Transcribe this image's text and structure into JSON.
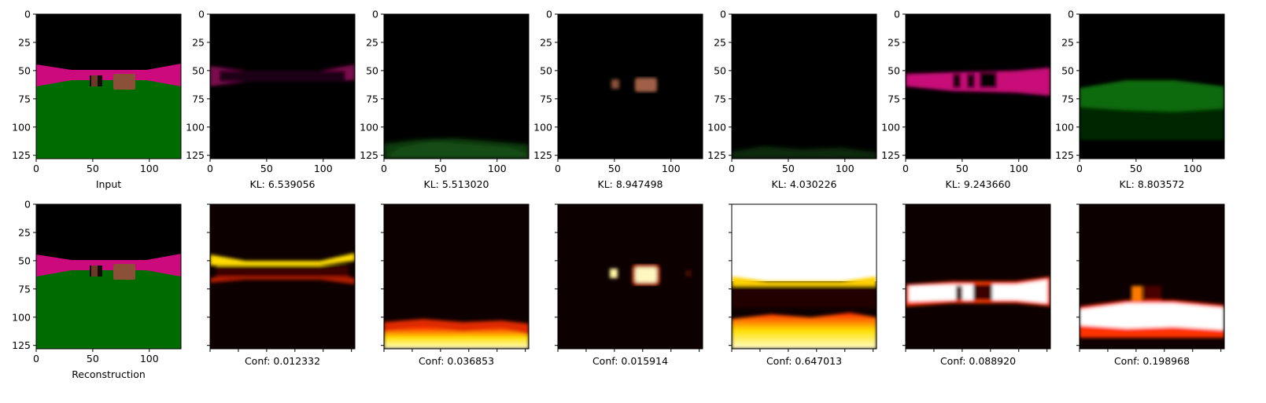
{
  "figure": {
    "image_size": 128,
    "axis_ticks": [
      0,
      25,
      50,
      75,
      100,
      125
    ],
    "x_ticks": [
      0,
      50,
      100
    ],
    "top_row": [
      {
        "label": "Input",
        "content": "scene-full"
      },
      {
        "label": "KL: 6.539056",
        "content": "channel-walls-dark"
      },
      {
        "label": "KL: 5.513020",
        "content": "channel-floor-dim"
      },
      {
        "label": "KL: 8.947498",
        "content": "channel-objects"
      },
      {
        "label": "KL: 4.030226",
        "content": "channel-floor-faint"
      },
      {
        "label": "KL: 9.243660",
        "content": "channel-walls-magenta"
      },
      {
        "label": "KL: 8.803572",
        "content": "channel-floor-green"
      }
    ],
    "bottom_row": [
      {
        "label": "Reconstruction",
        "content": "scene-full"
      },
      {
        "label": "Conf: 0.012332",
        "content": "heatmap-walls-edges"
      },
      {
        "label": "Conf: 0.036853",
        "content": "heatmap-floor"
      },
      {
        "label": "Conf: 0.015914",
        "content": "heatmap-objects"
      },
      {
        "label": "Conf: 0.647013",
        "content": "heatmap-sky-floor"
      },
      {
        "label": "Conf: 0.088920",
        "content": "heatmap-walls-bright"
      },
      {
        "label": "Conf: 0.198968",
        "content": "heatmap-floor-bright"
      }
    ],
    "colors": {
      "background": "#000000",
      "wall": "#cc0a7e",
      "floor": "#006b00",
      "object": "#8a5038",
      "heat_dark": "#0d0000",
      "heat_mid": "#ff4400",
      "heat_bright": "#ffffff"
    }
  }
}
